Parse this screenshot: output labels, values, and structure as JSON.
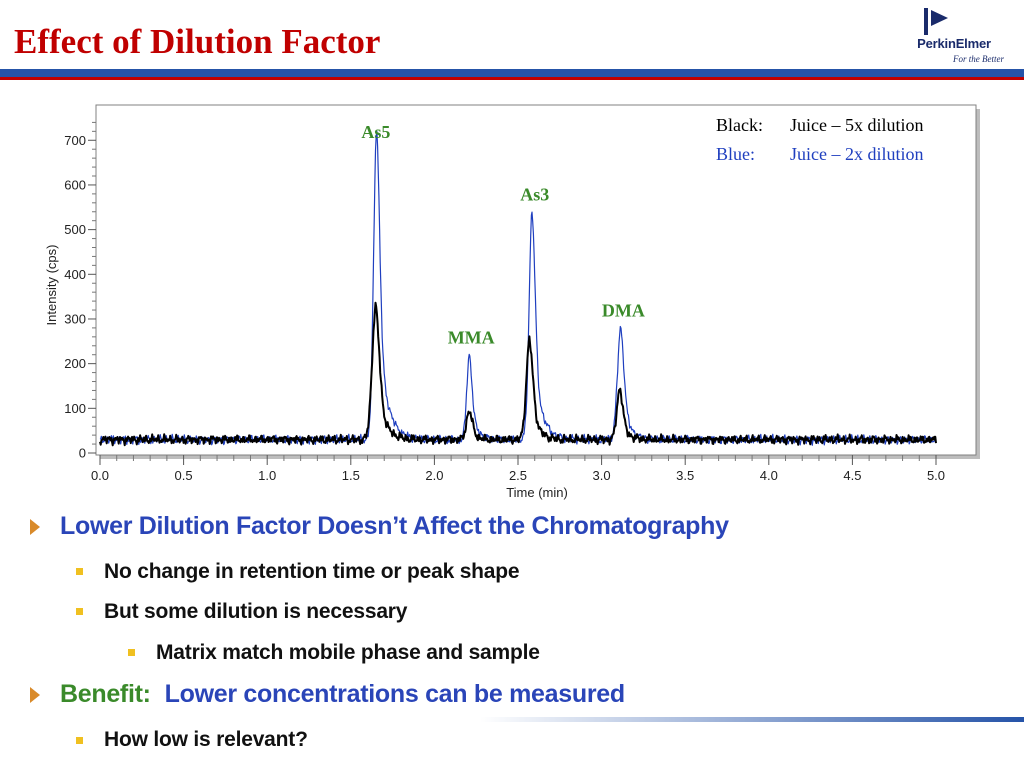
{
  "slide": {
    "title": "Effect of Dilution Factor",
    "logo": {
      "name": "PerkinElmer",
      "tagline": "For the Better"
    }
  },
  "chart_data": {
    "type": "line",
    "xlabel": "Time (min)",
    "ylabel": "Intensity (cps)",
    "xlim": [
      0,
      5
    ],
    "ylim": [
      0,
      770
    ],
    "xticks": [
      "0.0",
      "0.5",
      "1.0",
      "1.5",
      "2.0",
      "2.5",
      "3.0",
      "3.5",
      "4.0",
      "4.5",
      "5.0"
    ],
    "yticks": [
      "0",
      "100",
      "200",
      "300",
      "400",
      "500",
      "600",
      "700"
    ],
    "legend": {
      "placement": "top-right",
      "entries": [
        {
          "key": "Black:",
          "label": "Juice – 5x dilution",
          "color": "#000000"
        },
        {
          "key": "Blue:",
          "label": "Juice – 2x dilution",
          "color": "#1f3fbf"
        }
      ]
    },
    "annotations": [
      {
        "text": "As5",
        "x": 1.65,
        "y": 705
      },
      {
        "text": "MMA",
        "x": 2.22,
        "y": 245
      },
      {
        "text": "As3",
        "x": 2.6,
        "y": 565
      },
      {
        "text": "DMA",
        "x": 3.13,
        "y": 305
      }
    ],
    "series": [
      {
        "name": "Juice – 5x dilution",
        "color": "#000000",
        "baseline": 30,
        "peaks": [
          {
            "t": 1.65,
            "height": 300,
            "width": 0.022,
            "tail": 0.045
          },
          {
            "t": 2.21,
            "height": 65,
            "width": 0.018,
            "tail": 0.03
          },
          {
            "t": 2.57,
            "height": 225,
            "width": 0.02,
            "tail": 0.04
          },
          {
            "t": 3.11,
            "height": 115,
            "width": 0.018,
            "tail": 0.035
          }
        ]
      },
      {
        "name": "Juice – 2x dilution",
        "color": "#1f3fbf",
        "baseline": 30,
        "peaks": [
          {
            "t": 1.655,
            "height": 700,
            "width": 0.018,
            "tail": 0.05
          },
          {
            "t": 2.21,
            "height": 190,
            "width": 0.016,
            "tail": 0.035
          },
          {
            "t": 2.585,
            "height": 515,
            "width": 0.018,
            "tail": 0.045
          },
          {
            "t": 3.115,
            "height": 250,
            "width": 0.02,
            "tail": 0.04
          }
        ]
      }
    ]
  },
  "bullets": {
    "b1": "Lower Dilution Factor Doesn’t Affect the Chromatography",
    "b1a": "No change in retention time or peak shape",
    "b1b": "But some dilution is necessary",
    "b1b1": "Matrix match mobile phase and sample",
    "b2_green": "Benefit:",
    "b2_blue": "Lower concentrations can be measured",
    "b2a": "How low is relevant?"
  }
}
